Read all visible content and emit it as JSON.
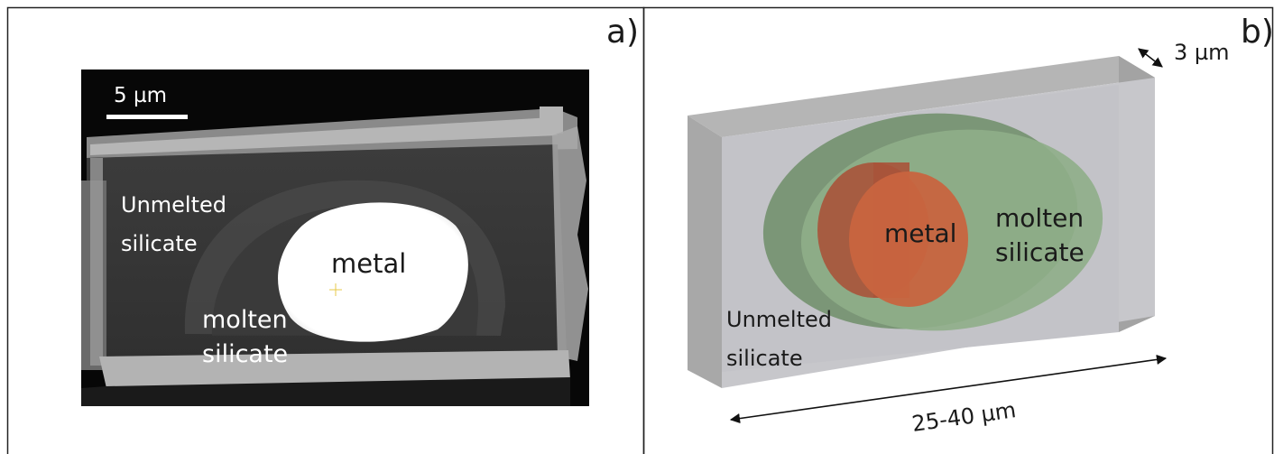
{
  "panel_a": {
    "panel_label": "a)",
    "scalebar_label": "5 µm",
    "labels": {
      "metal": "metal",
      "unmelted_line1": "Unmelted",
      "unmelted_line2": "silicate",
      "molten_line1": "molten",
      "molten_line2": "silicate"
    }
  },
  "panel_b": {
    "panel_label": "b)",
    "thickness_label": "3 µm",
    "length_label": "25-40 µm",
    "labels": {
      "metal": "metal",
      "molten_line1": "molten",
      "molten_line2": "silicate",
      "unmelted_line1": "Unmelted",
      "unmelted_line2": "silicate"
    }
  },
  "colors": {
    "metal_sem": "#ffffff",
    "metal_model": "#c8643f",
    "molten_model": "#7f9e78",
    "unmelted_model": "#c7c7cb",
    "frame": "#222222"
  }
}
